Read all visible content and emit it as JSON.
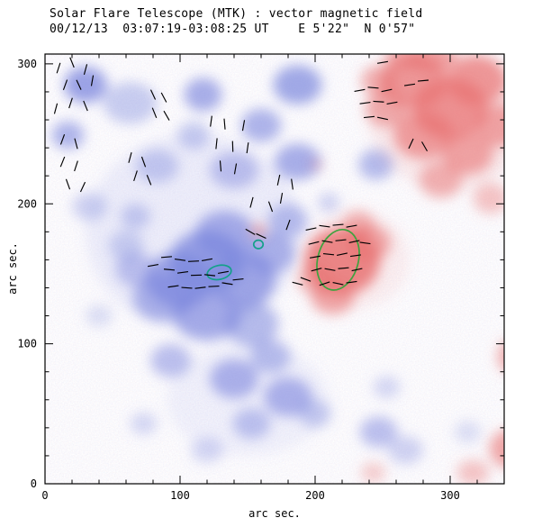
{
  "title": "Solar Flare Telescope (MTK) : vector magnetic field",
  "subtitle": "00/12/13  03:07:19-03:08:25 UT    E 5'22\"  N 0'57\"",
  "axes": {
    "xlabel": "arc sec.",
    "ylabel": "arc sec.",
    "xticks": [
      0,
      100,
      200,
      300
    ],
    "yticks": [
      0,
      100,
      200,
      300
    ],
    "xrange": [
      0,
      340
    ],
    "yrange": [
      0,
      307
    ],
    "xminor": 20,
    "yminor": 20
  },
  "chart_data": {
    "type": "heatmap",
    "title": "Solar Flare Telescope (MTK) : vector magnetic field",
    "xlabel": "arc sec.",
    "ylabel": "arc sec.",
    "xlim": [
      0,
      340
    ],
    "ylim": [
      0,
      307
    ],
    "negative_color": "#7b86dd",
    "positive_color": "#e87272",
    "vector_color": "#000000",
    "vector_length": 8,
    "negative_regions": [
      [
        110,
        180,
        80,
        70,
        0.12
      ],
      [
        150,
        60,
        60,
        40,
        0.1
      ],
      [
        30,
        285,
        16,
        13,
        0.75
      ],
      [
        17,
        249,
        12,
        10,
        0.6
      ],
      [
        63,
        272,
        20,
        15,
        0.4
      ],
      [
        117,
        278,
        14,
        12,
        0.65
      ],
      [
        110,
        249,
        12,
        10,
        0.4
      ],
      [
        187,
        285,
        18,
        14,
        0.7
      ],
      [
        160,
        256,
        15,
        12,
        0.6
      ],
      [
        187,
        230,
        17,
        13,
        0.65
      ],
      [
        140,
        224,
        18,
        13,
        0.45
      ],
      [
        83,
        227,
        16,
        12,
        0.4
      ],
      [
        33,
        198,
        13,
        10,
        0.35
      ],
      [
        67,
        191,
        11,
        9,
        0.4
      ],
      [
        120,
        159,
        28,
        22,
        0.75
      ],
      [
        147,
        146,
        24,
        20,
        0.7
      ],
      [
        100,
        146,
        25,
        20,
        0.7
      ],
      [
        133,
        178,
        22,
        17,
        0.65
      ],
      [
        167,
        165,
        18,
        15,
        0.6
      ],
      [
        180,
        188,
        15,
        12,
        0.5
      ],
      [
        87,
        133,
        22,
        17,
        0.6
      ],
      [
        120,
        120,
        25,
        18,
        0.65
      ],
      [
        153,
        114,
        20,
        16,
        0.55
      ],
      [
        67,
        153,
        15,
        12,
        0.45
      ],
      [
        60,
        170,
        13,
        11,
        0.35
      ],
      [
        93,
        88,
        15,
        12,
        0.5
      ],
      [
        140,
        75,
        18,
        14,
        0.6
      ],
      [
        167,
        91,
        15,
        12,
        0.5
      ],
      [
        180,
        62,
        18,
        14,
        0.6
      ],
      [
        153,
        43,
        14,
        11,
        0.45
      ],
      [
        200,
        50,
        12,
        10,
        0.4
      ],
      [
        247,
        37,
        14,
        11,
        0.5
      ],
      [
        267,
        24,
        13,
        10,
        0.35
      ],
      [
        120,
        24,
        12,
        9,
        0.3
      ],
      [
        73,
        43,
        10,
        8,
        0.3
      ],
      [
        40,
        120,
        10,
        8,
        0.25
      ],
      [
        245,
        228,
        13,
        11,
        0.55
      ],
      [
        210,
        201,
        8,
        7,
        0.35
      ],
      [
        253,
        69,
        10,
        8,
        0.3
      ],
      [
        313,
        37,
        10,
        8,
        0.25
      ]
    ],
    "positive_regions": [
      [
        300,
        260,
        60,
        50,
        0.12
      ],
      [
        230,
        160,
        40,
        35,
        0.1
      ],
      [
        273,
        288,
        25,
        20,
        0.7
      ],
      [
        300,
        268,
        28,
        22,
        0.75
      ],
      [
        320,
        288,
        22,
        18,
        0.7
      ],
      [
        280,
        249,
        22,
        17,
        0.65
      ],
      [
        313,
        236,
        19,
        15,
        0.6
      ],
      [
        337,
        256,
        18,
        15,
        0.6
      ],
      [
        253,
        268,
        16,
        13,
        0.55
      ],
      [
        293,
        217,
        16,
        13,
        0.5
      ],
      [
        330,
        204,
        13,
        11,
        0.4
      ],
      [
        247,
        288,
        13,
        11,
        0.55
      ],
      [
        287,
        304,
        18,
        10,
        0.6
      ],
      [
        265,
        305,
        14,
        9,
        0.5
      ],
      [
        220,
        159,
        28,
        24,
        0.85
      ],
      [
        240,
        172,
        16,
        13,
        0.6
      ],
      [
        213,
        133,
        16,
        12,
        0.6
      ],
      [
        200,
        146,
        13,
        11,
        0.5
      ],
      [
        232,
        185,
        12,
        10,
        0.5
      ],
      [
        158,
        181,
        5,
        4,
        0.7
      ],
      [
        345,
        25,
        16,
        14,
        0.6
      ],
      [
        317,
        8,
        12,
        9,
        0.4
      ],
      [
        345,
        91,
        10,
        12,
        0.55
      ],
      [
        243,
        8,
        9,
        7,
        0.35
      ],
      [
        201,
        228,
        4,
        3,
        0.45
      ]
    ],
    "contours": [
      {
        "cx": 129,
        "cy": 151,
        "rx": 9,
        "ry": 5,
        "rot": -12,
        "color": "#14a08a"
      },
      {
        "cx": 158,
        "cy": 171,
        "rx": 3.5,
        "ry": 3,
        "rot": 0,
        "color": "#14a08a"
      },
      {
        "cx": 217,
        "cy": 160,
        "rx": 15,
        "ry": 22,
        "rot": 15,
        "color": "#3fa23f"
      }
    ],
    "vectors": [
      [
        10,
        297,
        72
      ],
      [
        20,
        301,
        -68
      ],
      [
        30,
        296,
        75
      ],
      [
        15,
        285,
        70
      ],
      [
        25,
        285,
        -65
      ],
      [
        35,
        288,
        80
      ],
      [
        19,
        272,
        72
      ],
      [
        30,
        270,
        -68
      ],
      [
        8,
        268,
        75
      ],
      [
        13,
        246,
        70
      ],
      [
        23,
        243,
        -75
      ],
      [
        13,
        230,
        68
      ],
      [
        23,
        227,
        72
      ],
      [
        17,
        214,
        -70
      ],
      [
        28,
        212,
        65
      ],
      [
        80,
        278,
        -65
      ],
      [
        88,
        276,
        -62
      ],
      [
        81,
        265,
        -68
      ],
      [
        90,
        263,
        -60
      ],
      [
        63,
        233,
        75
      ],
      [
        73,
        230,
        -70
      ],
      [
        67,
        220,
        72
      ],
      [
        77,
        217,
        -68
      ],
      [
        123,
        259,
        82
      ],
      [
        133,
        257,
        -85
      ],
      [
        147,
        256,
        80
      ],
      [
        127,
        243,
        84
      ],
      [
        139,
        241,
        -88
      ],
      [
        150,
        240,
        82
      ],
      [
        130,
        227,
        -85
      ],
      [
        141,
        225,
        80
      ],
      [
        173,
        217,
        78
      ],
      [
        183,
        214,
        -82
      ],
      [
        175,
        204,
        80
      ],
      [
        153,
        201,
        75
      ],
      [
        167,
        198,
        -70
      ],
      [
        80,
        156,
        10
      ],
      [
        90,
        162,
        5
      ],
      [
        100,
        160,
        -8
      ],
      [
        110,
        159,
        3
      ],
      [
        120,
        160,
        10
      ],
      [
        92,
        153,
        -5
      ],
      [
        102,
        151,
        8
      ],
      [
        112,
        149,
        2
      ],
      [
        122,
        149,
        -6
      ],
      [
        132,
        151,
        10
      ],
      [
        95,
        141,
        8
      ],
      [
        105,
        140,
        -4
      ],
      [
        115,
        140,
        7
      ],
      [
        125,
        141,
        3
      ],
      [
        135,
        143,
        -9
      ],
      [
        143,
        146,
        6
      ],
      [
        197,
        182,
        12
      ],
      [
        207,
        184,
        -8
      ],
      [
        217,
        185,
        5
      ],
      [
        227,
        184,
        10
      ],
      [
        199,
        172,
        14
      ],
      [
        209,
        173,
        -10
      ],
      [
        219,
        174,
        6
      ],
      [
        229,
        173,
        12
      ],
      [
        237,
        172,
        -8
      ],
      [
        200,
        162,
        10
      ],
      [
        210,
        164,
        -6
      ],
      [
        220,
        164,
        12
      ],
      [
        230,
        163,
        8
      ],
      [
        201,
        153,
        15
      ],
      [
        211,
        153,
        -10
      ],
      [
        221,
        154,
        5
      ],
      [
        231,
        153,
        12
      ],
      [
        207,
        143,
        18
      ],
      [
        217,
        143,
        -12
      ],
      [
        227,
        144,
        8
      ],
      [
        193,
        146,
        -20
      ],
      [
        187,
        143,
        -15
      ],
      [
        233,
        281,
        10
      ],
      [
        243,
        283,
        -5
      ],
      [
        253,
        281,
        12
      ],
      [
        237,
        272,
        8
      ],
      [
        247,
        273,
        -4
      ],
      [
        257,
        272,
        10
      ],
      [
        240,
        262,
        6
      ],
      [
        250,
        261,
        -12
      ],
      [
        270,
        285,
        8
      ],
      [
        280,
        288,
        5
      ],
      [
        250,
        301,
        10
      ],
      [
        271,
        243,
        65
      ],
      [
        281,
        241,
        -60
      ],
      [
        180,
        185,
        70
      ],
      [
        152,
        180,
        -30
      ],
      [
        160,
        177,
        -25
      ]
    ]
  }
}
